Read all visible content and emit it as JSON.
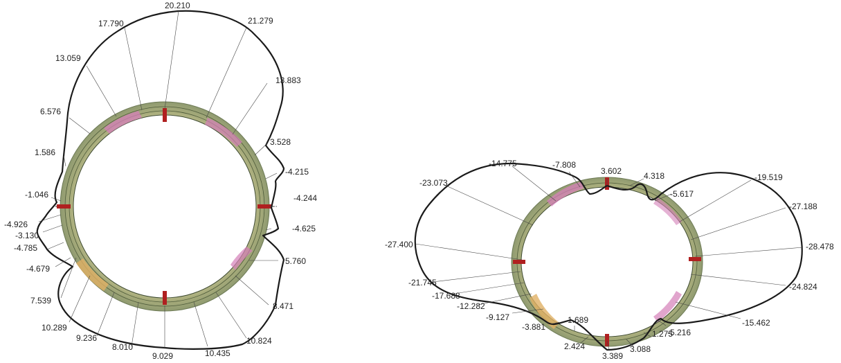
{
  "diagrams": [
    {
      "labels": [
        "20.210",
        "21.279",
        "13.883",
        "3.528",
        "-4.215",
        "-4.244",
        "-4.625",
        "5.760",
        "8.471",
        "10.824",
        "10.435",
        "9.029",
        "8.010",
        "9.236",
        "10.289",
        "7.539",
        "-4.679",
        "-4.785",
        "-3.130",
        "-4.926",
        "-1.046",
        "1.586",
        "6.576",
        "13.059",
        "17.790"
      ]
    },
    {
      "labels": [
        "3.602",
        "4.318",
        "-5.617",
        "-19.519",
        "-27.188",
        "-28.478",
        "-24.824",
        "-15.462",
        "-5.216",
        "1.275",
        "3.088",
        "3.389",
        "2.424",
        "1.689",
        "-3.881",
        "-9.127",
        "-12.282",
        "-17.688",
        "-21.745",
        "-27.400",
        "-23.073",
        "-14.775",
        "-7.808"
      ]
    }
  ],
  "colors": {
    "outline": "#1a1a1a",
    "ring": "#b7b98a",
    "hot": "#d47fb8",
    "mark": "#b02020"
  }
}
